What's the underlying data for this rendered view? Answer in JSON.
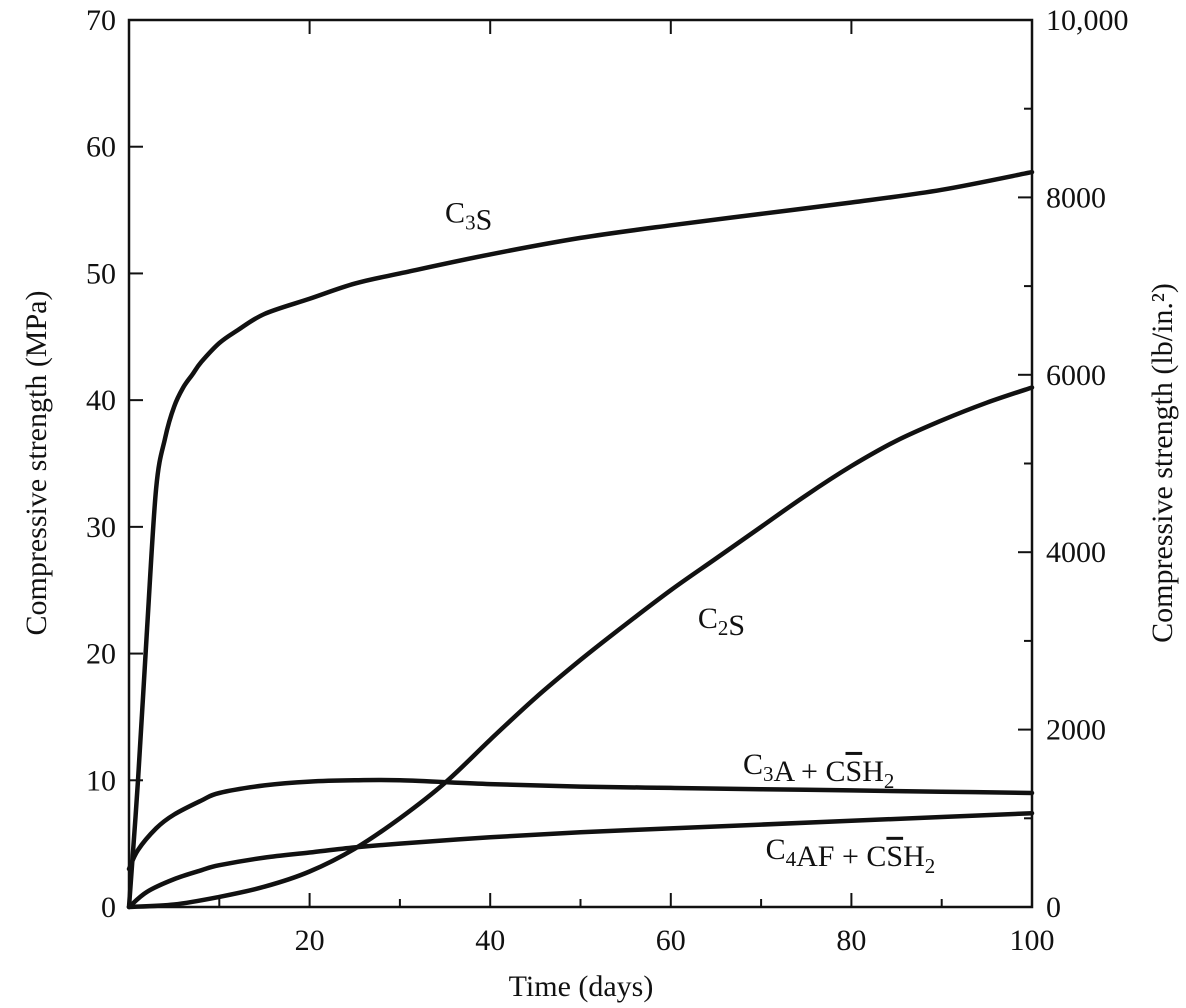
{
  "chart_data": {
    "type": "line",
    "xlabel": "Time (days)",
    "ylabel_left": "Compressive strength (MPa)",
    "ylabel_right": "Compressive strength (lb/in.²)",
    "xlim": [
      0,
      100
    ],
    "ylim_left": [
      0,
      70
    ],
    "ylim_right": [
      0,
      10000
    ],
    "x_ticks": [
      0,
      20,
      40,
      60,
      80,
      100
    ],
    "x_tick_labels": [
      "20",
      "40",
      "60",
      "80",
      "100"
    ],
    "y_left_ticks": [
      0,
      10,
      20,
      30,
      40,
      50,
      60,
      70
    ],
    "y_left_tick_labels": [
      "0",
      "10",
      "20",
      "30",
      "40",
      "50",
      "60",
      "70"
    ],
    "y_right_ticks": [
      0,
      2000,
      4000,
      6000,
      8000,
      10000
    ],
    "y_right_tick_labels": [
      "0",
      "2000",
      "4000",
      "6000",
      "8000",
      "10,000"
    ],
    "grid": false,
    "series": [
      {
        "name": "C3S",
        "label_parts": [
          {
            "t": "C"
          },
          {
            "t": "3",
            "sub": true
          },
          {
            "t": "S"
          }
        ],
        "label_at": [
          35,
          54
        ],
        "x": [
          0,
          1,
          2,
          3,
          4,
          5,
          6,
          7,
          8,
          10,
          12,
          15,
          20,
          25,
          30,
          40,
          50,
          60,
          70,
          80,
          90,
          100
        ],
        "y": [
          0,
          10,
          22,
          33,
          37,
          39.5,
          41,
          42,
          43,
          44.5,
          45.5,
          46.8,
          48,
          49.2,
          50,
          51.5,
          52.8,
          53.8,
          54.7,
          55.6,
          56.6,
          58
        ]
      },
      {
        "name": "C2S",
        "label_parts": [
          {
            "t": "C"
          },
          {
            "t": "2",
            "sub": true
          },
          {
            "t": "S"
          }
        ],
        "label_at": [
          63,
          22
        ],
        "x": [
          0,
          5,
          10,
          15,
          20,
          25,
          30,
          35,
          40,
          45,
          50,
          55,
          60,
          65,
          70,
          75,
          80,
          85,
          90,
          95,
          100
        ],
        "y": [
          0,
          0.2,
          0.8,
          1.6,
          2.8,
          4.6,
          7,
          9.8,
          13.2,
          16.5,
          19.5,
          22.3,
          25,
          27.5,
          30,
          32.5,
          34.8,
          36.8,
          38.4,
          39.8,
          41
        ]
      },
      {
        "name": "C3A + CSH2",
        "label_parts": [
          {
            "t": "C"
          },
          {
            "t": "3",
            "sub": true
          },
          {
            "t": "A + C"
          },
          {
            "t": "S",
            "bar": true
          },
          {
            "t": "H"
          },
          {
            "t": "2",
            "sub": true
          }
        ],
        "label_at": [
          68,
          10.5
        ],
        "x": [
          0,
          1,
          3,
          5,
          8,
          10,
          15,
          20,
          25,
          30,
          40,
          50,
          60,
          70,
          80,
          90,
          100
        ],
        "y": [
          3,
          4.5,
          6.2,
          7.3,
          8.4,
          9,
          9.6,
          9.9,
          10,
          10,
          9.7,
          9.5,
          9.4,
          9.3,
          9.2,
          9.1,
          9
        ]
      },
      {
        "name": "C4AF + CSH2",
        "label_parts": [
          {
            "t": "C"
          },
          {
            "t": "4",
            "sub": true
          },
          {
            "t": "AF + C"
          },
          {
            "t": "S",
            "bar": true
          },
          {
            "t": "H"
          },
          {
            "t": "2",
            "sub": true
          }
        ],
        "label_at": [
          70.5,
          3.8
        ],
        "x": [
          0,
          2,
          5,
          8,
          10,
          15,
          20,
          25,
          30,
          40,
          50,
          60,
          70,
          80,
          90,
          100
        ],
        "y": [
          0,
          1.2,
          2.2,
          2.9,
          3.3,
          3.9,
          4.3,
          4.7,
          5,
          5.5,
          5.9,
          6.2,
          6.5,
          6.8,
          7.1,
          7.4
        ]
      }
    ]
  }
}
